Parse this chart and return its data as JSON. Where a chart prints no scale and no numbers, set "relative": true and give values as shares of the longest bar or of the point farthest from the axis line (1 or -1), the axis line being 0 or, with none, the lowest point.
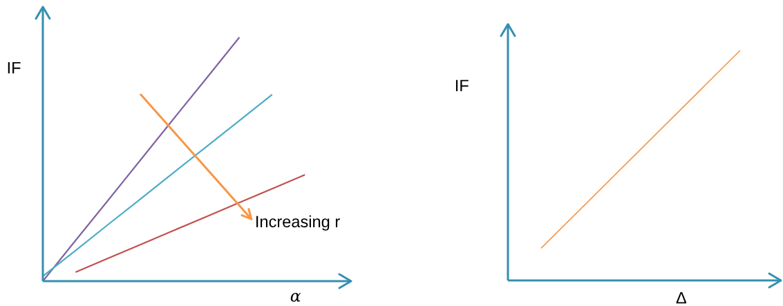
{
  "chart_data": [
    {
      "type": "line",
      "relative": true,
      "xlabel": "α",
      "ylabel": "IF",
      "categories": [
        null,
        null,
        null,
        null,
        null,
        null,
        null,
        null,
        null
      ],
      "series": [
        {
          "color": "#8064a2",
          "values": [
            0,
            0.167,
            0.333,
            0.5,
            0.667,
            0.833,
            1,
            null,
            null
          ]
        },
        {
          "color": "#4bacc6",
          "values": [
            0.02,
            0.126,
            0.233,
            0.339,
            0.446,
            0.552,
            0.658,
            0.765,
            null
          ]
        },
        {
          "color": "#c0504d",
          "values": [
            null,
            0.037,
            0.094,
            0.151,
            0.208,
            0.265,
            0.322,
            0.379,
            0.436
          ]
        }
      ],
      "annotations": [
        "Increasing r"
      ]
    },
    {
      "type": "line",
      "relative": true,
      "xlabel": "Δ",
      "ylabel": "IF",
      "categories": [
        null,
        null
      ],
      "series": [
        {
          "color": "#f79646",
          "values": [
            0.14,
            1
          ]
        }
      ]
    }
  ]
}
